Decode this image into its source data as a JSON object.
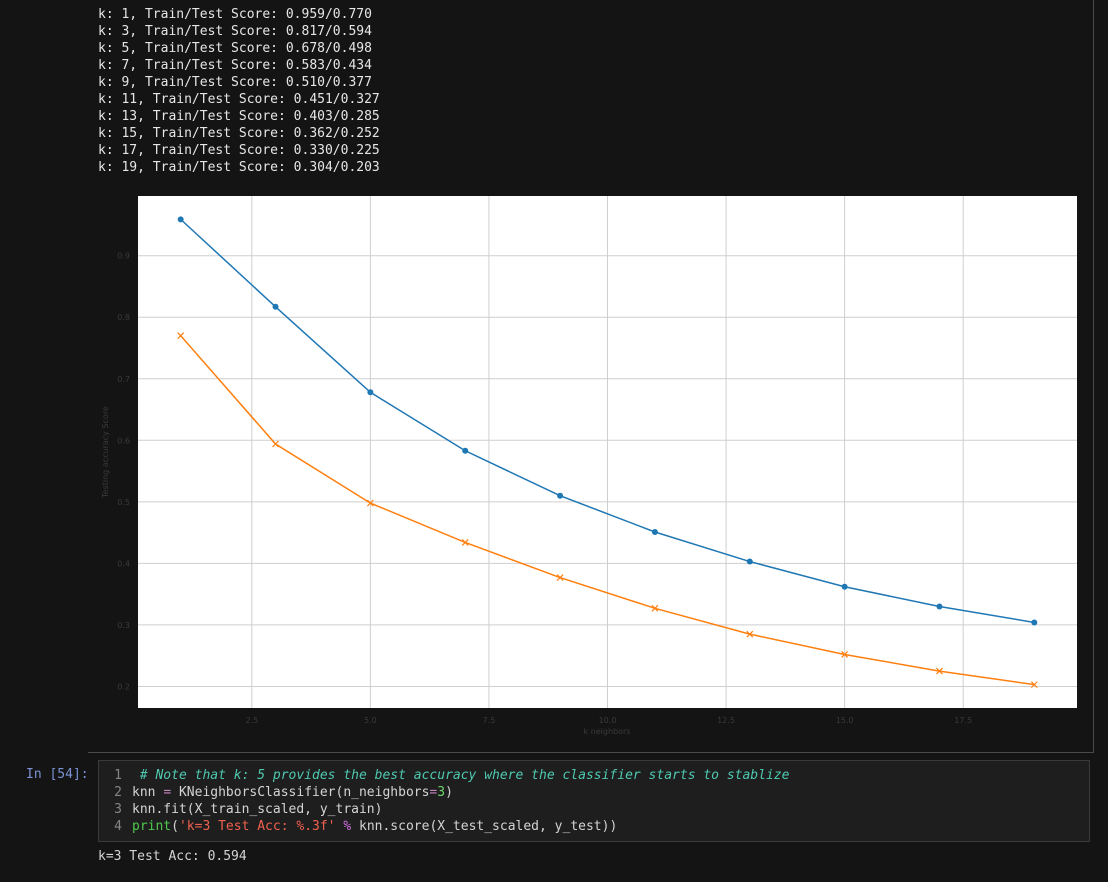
{
  "output": {
    "lines": [
      "k: 1, Train/Test Score: 0.959/0.770",
      "k: 3, Train/Test Score: 0.817/0.594",
      "k: 5, Train/Test Score: 0.678/0.498",
      "k: 7, Train/Test Score: 0.583/0.434",
      "k: 9, Train/Test Score: 0.510/0.377",
      "k: 11, Train/Test Score: 0.451/0.327",
      "k: 13, Train/Test Score: 0.403/0.285",
      "k: 15, Train/Test Score: 0.362/0.252",
      "k: 17, Train/Test Score: 0.330/0.225",
      "k: 19, Train/Test Score: 0.304/0.203"
    ]
  },
  "chart_data": {
    "type": "line",
    "x": [
      1,
      3,
      5,
      7,
      9,
      11,
      13,
      15,
      17,
      19
    ],
    "series": [
      {
        "color": "#1f77b4",
        "marker": "o",
        "values": [
          0.959,
          0.817,
          0.678,
          0.583,
          0.51,
          0.451,
          0.403,
          0.362,
          0.33,
          0.304
        ]
      },
      {
        "color": "#ff7f0e",
        "marker": "x",
        "values": [
          0.77,
          0.594,
          0.498,
          0.434,
          0.377,
          0.327,
          0.285,
          0.252,
          0.225,
          0.203
        ]
      }
    ],
    "xlabel": "k neighbors",
    "ylabel": "Testing accuracy Score",
    "xlim": [
      0.1,
      19.9
    ],
    "ylim": [
      0.165,
      0.997
    ],
    "xticks": [
      2.5,
      {
        "value": 5,
        "label": "5.0"
      },
      7.5,
      {
        "value": 10,
        "label": "10.0"
      },
      12.5,
      {
        "value": 15,
        "label": "15.0"
      },
      17.5
    ],
    "yticks": [
      0.2,
      0.3,
      0.4,
      0.5,
      0.6,
      0.7,
      0.8,
      0.9
    ],
    "grid": true
  },
  "code_cell": {
    "prompt": "In [54]:",
    "line_numbers": [
      1,
      2,
      3,
      4
    ],
    "lines": [
      [
        " # Note that k: 5 provides the best accuracy where the classifier starts to stablize"
      ],
      [
        "knn ",
        "=",
        " KNeighborsClassifier(n_neighbors",
        "=",
        "3",
        ")"
      ],
      [
        "knn.fit(X_train_scaled, y_train)"
      ],
      [
        "print",
        "(",
        "'k=3 Test Acc: %.3f'",
        " %",
        " knn.score(X_test_scaled, y_test))"
      ]
    ]
  },
  "result": {
    "text": "k=3 Test Acc: 0.594"
  }
}
